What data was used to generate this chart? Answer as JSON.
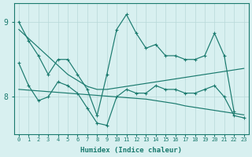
{
  "xlabel": "Humidex (Indice chaleur)",
  "x": [
    0,
    1,
    2,
    3,
    4,
    5,
    6,
    7,
    8,
    9,
    10,
    11,
    12,
    13,
    14,
    15,
    16,
    17,
    18,
    19,
    20,
    21,
    22,
    23
  ],
  "line_upper": [
    9.0,
    8.75,
    8.55,
    8.3,
    8.5,
    8.5,
    8.3,
    8.1,
    7.75,
    8.3,
    8.9,
    9.1,
    8.85,
    8.65,
    8.7,
    8.55,
    8.55,
    8.5,
    8.5,
    8.55,
    8.85,
    8.55,
    7.8,
    null
  ],
  "line_lower": [
    8.45,
    8.15,
    7.95,
    8.0,
    8.2,
    8.15,
    8.05,
    7.85,
    7.65,
    7.62,
    8.0,
    8.1,
    8.05,
    8.05,
    8.15,
    8.1,
    8.1,
    8.05,
    8.05,
    8.1,
    8.15,
    8.0,
    7.75,
    7.72
  ],
  "trend_descending": [
    8.9,
    8.78,
    8.66,
    8.54,
    8.42,
    8.3,
    8.22,
    8.14,
    8.1,
    8.1,
    8.12,
    8.14,
    8.16,
    8.18,
    8.2,
    8.22,
    8.24,
    8.26,
    8.28,
    8.3,
    8.32,
    8.34,
    8.36,
    8.38
  ],
  "trend_flat": [
    8.1,
    8.09,
    8.08,
    8.07,
    8.06,
    8.05,
    8.04,
    8.03,
    8.02,
    8.01,
    8.0,
    7.99,
    7.98,
    7.97,
    7.95,
    7.93,
    7.91,
    7.88,
    7.86,
    7.84,
    7.82,
    7.8,
    7.78,
    7.76
  ],
  "line_color": "#1a7a6e",
  "bg_color": "#d8f0f0",
  "grid_color": "#b8d8d8",
  "ylim_min": 7.5,
  "ylim_max": 9.25,
  "yticks": [
    8,
    9
  ],
  "xlim_min": -0.5,
  "xlim_max": 23.5
}
